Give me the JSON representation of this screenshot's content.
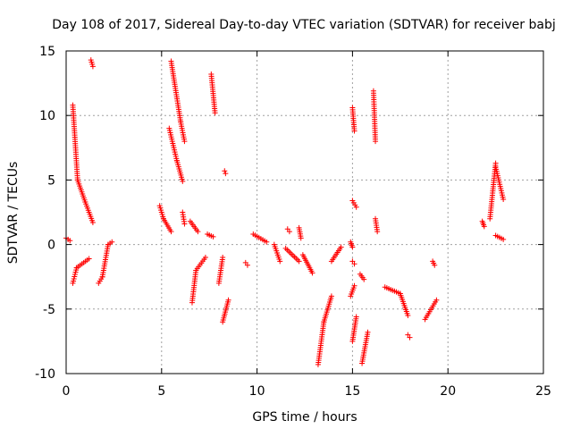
{
  "chart_data": {
    "type": "scatter",
    "title": "Day 108 of 2017, Sidereal Day-to-day VTEC variation (SDTVAR) for receiver babj",
    "xlabel": "GPS time / hours",
    "ylabel": "SDTVAR / TECUs",
    "xlim": [
      0,
      25
    ],
    "ylim": [
      -10,
      15
    ],
    "xticks": [
      0,
      5,
      10,
      15,
      20,
      25
    ],
    "yticks": [
      -10,
      -5,
      0,
      5,
      10,
      15
    ],
    "xtick_labels": [
      "0",
      "5",
      "10",
      "15",
      "20",
      "25"
    ],
    "ytick_labels": [
      "-10",
      "-5",
      "0",
      "5",
      "10",
      "15"
    ],
    "grid": true,
    "marker": "+",
    "color": "#ff0000",
    "series": [
      {
        "name": "SDTVAR",
        "segments": [
          {
            "x": [
              0.0,
              0.2
            ],
            "y": [
              0.5,
              0.3
            ]
          },
          {
            "x": [
              0.35,
              0.6
            ],
            "y": [
              10.8,
              5.0
            ]
          },
          {
            "x": [
              0.6,
              1.0
            ],
            "y": [
              5.0,
              3.3
            ]
          },
          {
            "x": [
              1.0,
              1.4
            ],
            "y": [
              3.3,
              1.7
            ]
          },
          {
            "x": [
              1.3,
              1.4
            ],
            "y": [
              14.3,
              13.8
            ]
          },
          {
            "x": [
              0.35,
              0.55
            ],
            "y": [
              -3.0,
              -1.8
            ]
          },
          {
            "x": [
              0.55,
              1.2
            ],
            "y": [
              -1.8,
              -1.1
            ]
          },
          {
            "x": [
              1.7,
              1.9
            ],
            "y": [
              -3.0,
              -2.5
            ]
          },
          {
            "x": [
              1.9,
              2.2
            ],
            "y": [
              -2.5,
              0.0
            ]
          },
          {
            "x": [
              2.2,
              2.4
            ],
            "y": [
              0.0,
              0.2
            ]
          },
          {
            "x": [
              4.9,
              5.1
            ],
            "y": [
              3.0,
              2.0
            ]
          },
          {
            "x": [
              5.1,
              5.5
            ],
            "y": [
              2.0,
              1.0
            ]
          },
          {
            "x": [
              5.5,
              6.0
            ],
            "y": [
              14.2,
              9.5
            ]
          },
          {
            "x": [
              6.0,
              6.2
            ],
            "y": [
              9.5,
              8.0
            ]
          },
          {
            "x": [
              5.4,
              5.8
            ],
            "y": [
              9.0,
              6.5
            ]
          },
          {
            "x": [
              5.8,
              6.1
            ],
            "y": [
              6.5,
              4.9
            ]
          },
          {
            "x": [
              6.1,
              6.2
            ],
            "y": [
              2.5,
              1.6
            ]
          },
          {
            "x": [
              6.5,
              6.9
            ],
            "y": [
              1.8,
              1.0
            ]
          },
          {
            "x": [
              6.6,
              6.8
            ],
            "y": [
              -4.5,
              -2.0
            ]
          },
          {
            "x": [
              6.8,
              7.3
            ],
            "y": [
              -2.0,
              -1.0
            ]
          },
          {
            "x": [
              7.4,
              7.7
            ],
            "y": [
              0.8,
              0.6
            ]
          },
          {
            "x": [
              7.6,
              7.8
            ],
            "y": [
              13.2,
              10.2
            ]
          },
          {
            "x": [
              8.0,
              8.2
            ],
            "y": [
              -3.0,
              -1.0
            ]
          },
          {
            "x": [
              8.2,
              8.5
            ],
            "y": [
              -6.0,
              -4.3
            ]
          },
          {
            "x": [
              8.3,
              8.35
            ],
            "y": [
              5.7,
              5.5
            ]
          },
          {
            "x": [
              9.4,
              9.5
            ],
            "y": [
              -1.4,
              -1.6
            ]
          },
          {
            "x": [
              9.8,
              10.5
            ],
            "y": [
              0.8,
              0.2
            ]
          },
          {
            "x": [
              10.9,
              11.2
            ],
            "y": [
              0.0,
              -1.3
            ]
          },
          {
            "x": [
              11.5,
              12.2
            ],
            "y": [
              -0.3,
              -1.3
            ]
          },
          {
            "x": [
              11.6,
              11.7
            ],
            "y": [
              1.2,
              1.0
            ]
          },
          {
            "x": [
              12.2,
              12.3
            ],
            "y": [
              1.3,
              0.5
            ]
          },
          {
            "x": [
              12.4,
              12.9
            ],
            "y": [
              -0.8,
              -2.2
            ]
          },
          {
            "x": [
              13.2,
              13.5
            ],
            "y": [
              -9.3,
              -6.0
            ]
          },
          {
            "x": [
              13.5,
              13.9
            ],
            "y": [
              -6.0,
              -4.0
            ]
          },
          {
            "x": [
              13.9,
              14.4
            ],
            "y": [
              -1.3,
              -0.2
            ]
          },
          {
            "x": [
              14.9,
              15.0
            ],
            "y": [
              0.2,
              -0.2
            ]
          },
          {
            "x": [
              14.9,
              15.1
            ],
            "y": [
              -4.0,
              -3.2
            ]
          },
          {
            "x": [
              15.0,
              15.1
            ],
            "y": [
              10.6,
              8.8
            ]
          },
          {
            "x": [
              15.0,
              15.2
            ],
            "y": [
              3.4,
              2.9
            ]
          },
          {
            "x": [
              15.0,
              15.1
            ],
            "y": [
              -1.3,
              -1.5
            ]
          },
          {
            "x": [
              15.0,
              15.2
            ],
            "y": [
              -7.5,
              -5.6
            ]
          },
          {
            "x": [
              15.5,
              15.8
            ],
            "y": [
              -9.2,
              -6.8
            ]
          },
          {
            "x": [
              15.4,
              15.6
            ],
            "y": [
              -2.3,
              -2.7
            ]
          },
          {
            "x": [
              16.1,
              16.2
            ],
            "y": [
              11.9,
              8.0
            ]
          },
          {
            "x": [
              16.2,
              16.3
            ],
            "y": [
              2.0,
              1.0
            ]
          },
          {
            "x": [
              16.7,
              17.5
            ],
            "y": [
              -3.3,
              -3.8
            ]
          },
          {
            "x": [
              17.5,
              17.9
            ],
            "y": [
              -3.8,
              -5.5
            ]
          },
          {
            "x": [
              17.9,
              18.0
            ],
            "y": [
              -7.0,
              -7.2
            ]
          },
          {
            "x": [
              18.8,
              19.4
            ],
            "y": [
              -5.8,
              -4.3
            ]
          },
          {
            "x": [
              19.2,
              19.3
            ],
            "y": [
              -1.3,
              -1.6
            ]
          },
          {
            "x": [
              21.8,
              21.9
            ],
            "y": [
              1.8,
              1.4
            ]
          },
          {
            "x": [
              22.2,
              22.5
            ],
            "y": [
              2.0,
              6.3
            ]
          },
          {
            "x": [
              22.5,
              22.9
            ],
            "y": [
              6.0,
              3.5
            ]
          },
          {
            "x": [
              22.5,
              22.9
            ],
            "y": [
              0.7,
              0.4
            ]
          }
        ]
      }
    ]
  }
}
